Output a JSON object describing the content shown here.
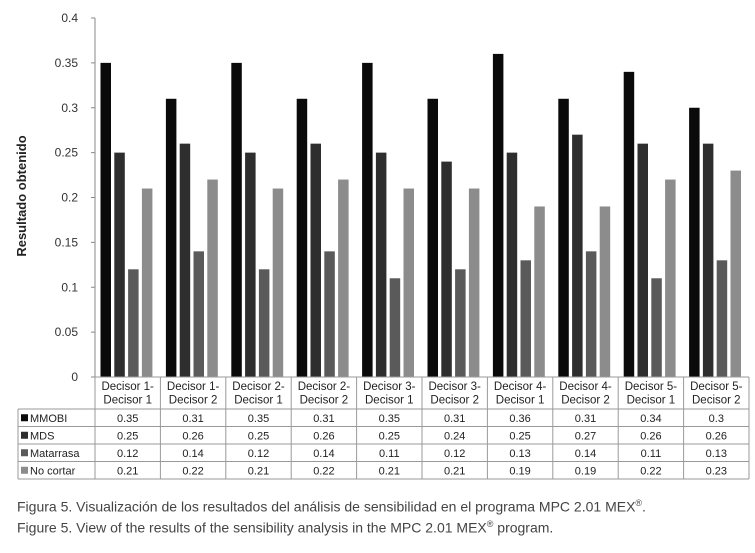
{
  "chart_data": {
    "type": "bar",
    "ylabel": "Resultado obtenido",
    "ylim": [
      0,
      0.4
    ],
    "yticks": [
      "0",
      "0.05",
      "0.1",
      "0.15",
      "0.2",
      "0.25",
      "0.3",
      "0.35",
      "0.4"
    ],
    "categories": [
      [
        "Decisor 1-",
        "Decisor 1"
      ],
      [
        "Decisor 1-",
        "Decisor 2"
      ],
      [
        "Decisor 2-",
        "Decisor 1"
      ],
      [
        "Decisor 2-",
        "Decisor 2"
      ],
      [
        "Decisor 3-",
        "Decisor 1"
      ],
      [
        "Decisor 3-",
        "Decisor 2"
      ],
      [
        "Decisor 4-",
        "Decisor 1"
      ],
      [
        "Decisor 4-",
        "Decisor 2"
      ],
      [
        "Decisor 5-",
        "Decisor 1"
      ],
      [
        "Decisor 5-",
        "Decisor 2"
      ]
    ],
    "series": [
      {
        "name": "MMOBI",
        "color": "#0a0a0a",
        "values": [
          0.35,
          0.31,
          0.35,
          0.31,
          0.35,
          0.31,
          0.36,
          0.31,
          0.34,
          0.3
        ],
        "labels": [
          "0.35",
          "0.31",
          "0.35",
          "0.31",
          "0.35",
          "0.31",
          "0.36",
          "0.31",
          "0.34",
          "0.3"
        ]
      },
      {
        "name": "MDS",
        "color": "#2e2e2e",
        "values": [
          0.25,
          0.26,
          0.25,
          0.26,
          0.25,
          0.24,
          0.25,
          0.27,
          0.26,
          0.26
        ],
        "labels": [
          "0.25",
          "0.26",
          "0.25",
          "0.26",
          "0.25",
          "0.24",
          "0.25",
          "0.27",
          "0.26",
          "0.26"
        ]
      },
      {
        "name": "Matarrasa",
        "color": "#5a5a5a",
        "values": [
          0.12,
          0.14,
          0.12,
          0.14,
          0.11,
          0.12,
          0.13,
          0.14,
          0.11,
          0.13
        ],
        "labels": [
          "0.12",
          "0.14",
          "0.12",
          "0.14",
          "0.11",
          "0.12",
          "0.13",
          "0.14",
          "0.11",
          "0.13"
        ]
      },
      {
        "name": "No cortar",
        "color": "#8c8c8c",
        "values": [
          0.21,
          0.22,
          0.21,
          0.22,
          0.21,
          0.21,
          0.19,
          0.19,
          0.22,
          0.23
        ],
        "labels": [
          "0.21",
          "0.22",
          "0.21",
          "0.22",
          "0.21",
          "0.21",
          "0.19",
          "0.19",
          "0.22",
          "0.23"
        ]
      }
    ],
    "legend": "table-left",
    "grid": false
  },
  "caption": {
    "es": "Figura 5. Visualización de los resultados del análisis de sensibilidad en el programa MPC 2.01 MEX",
    "es_sup": "®",
    "es_end": ".",
    "en": "Figure 5. View of the results of the sensibility analysis in the MPC 2.01 MEX",
    "en_sup": "®",
    "en_end": " program."
  }
}
